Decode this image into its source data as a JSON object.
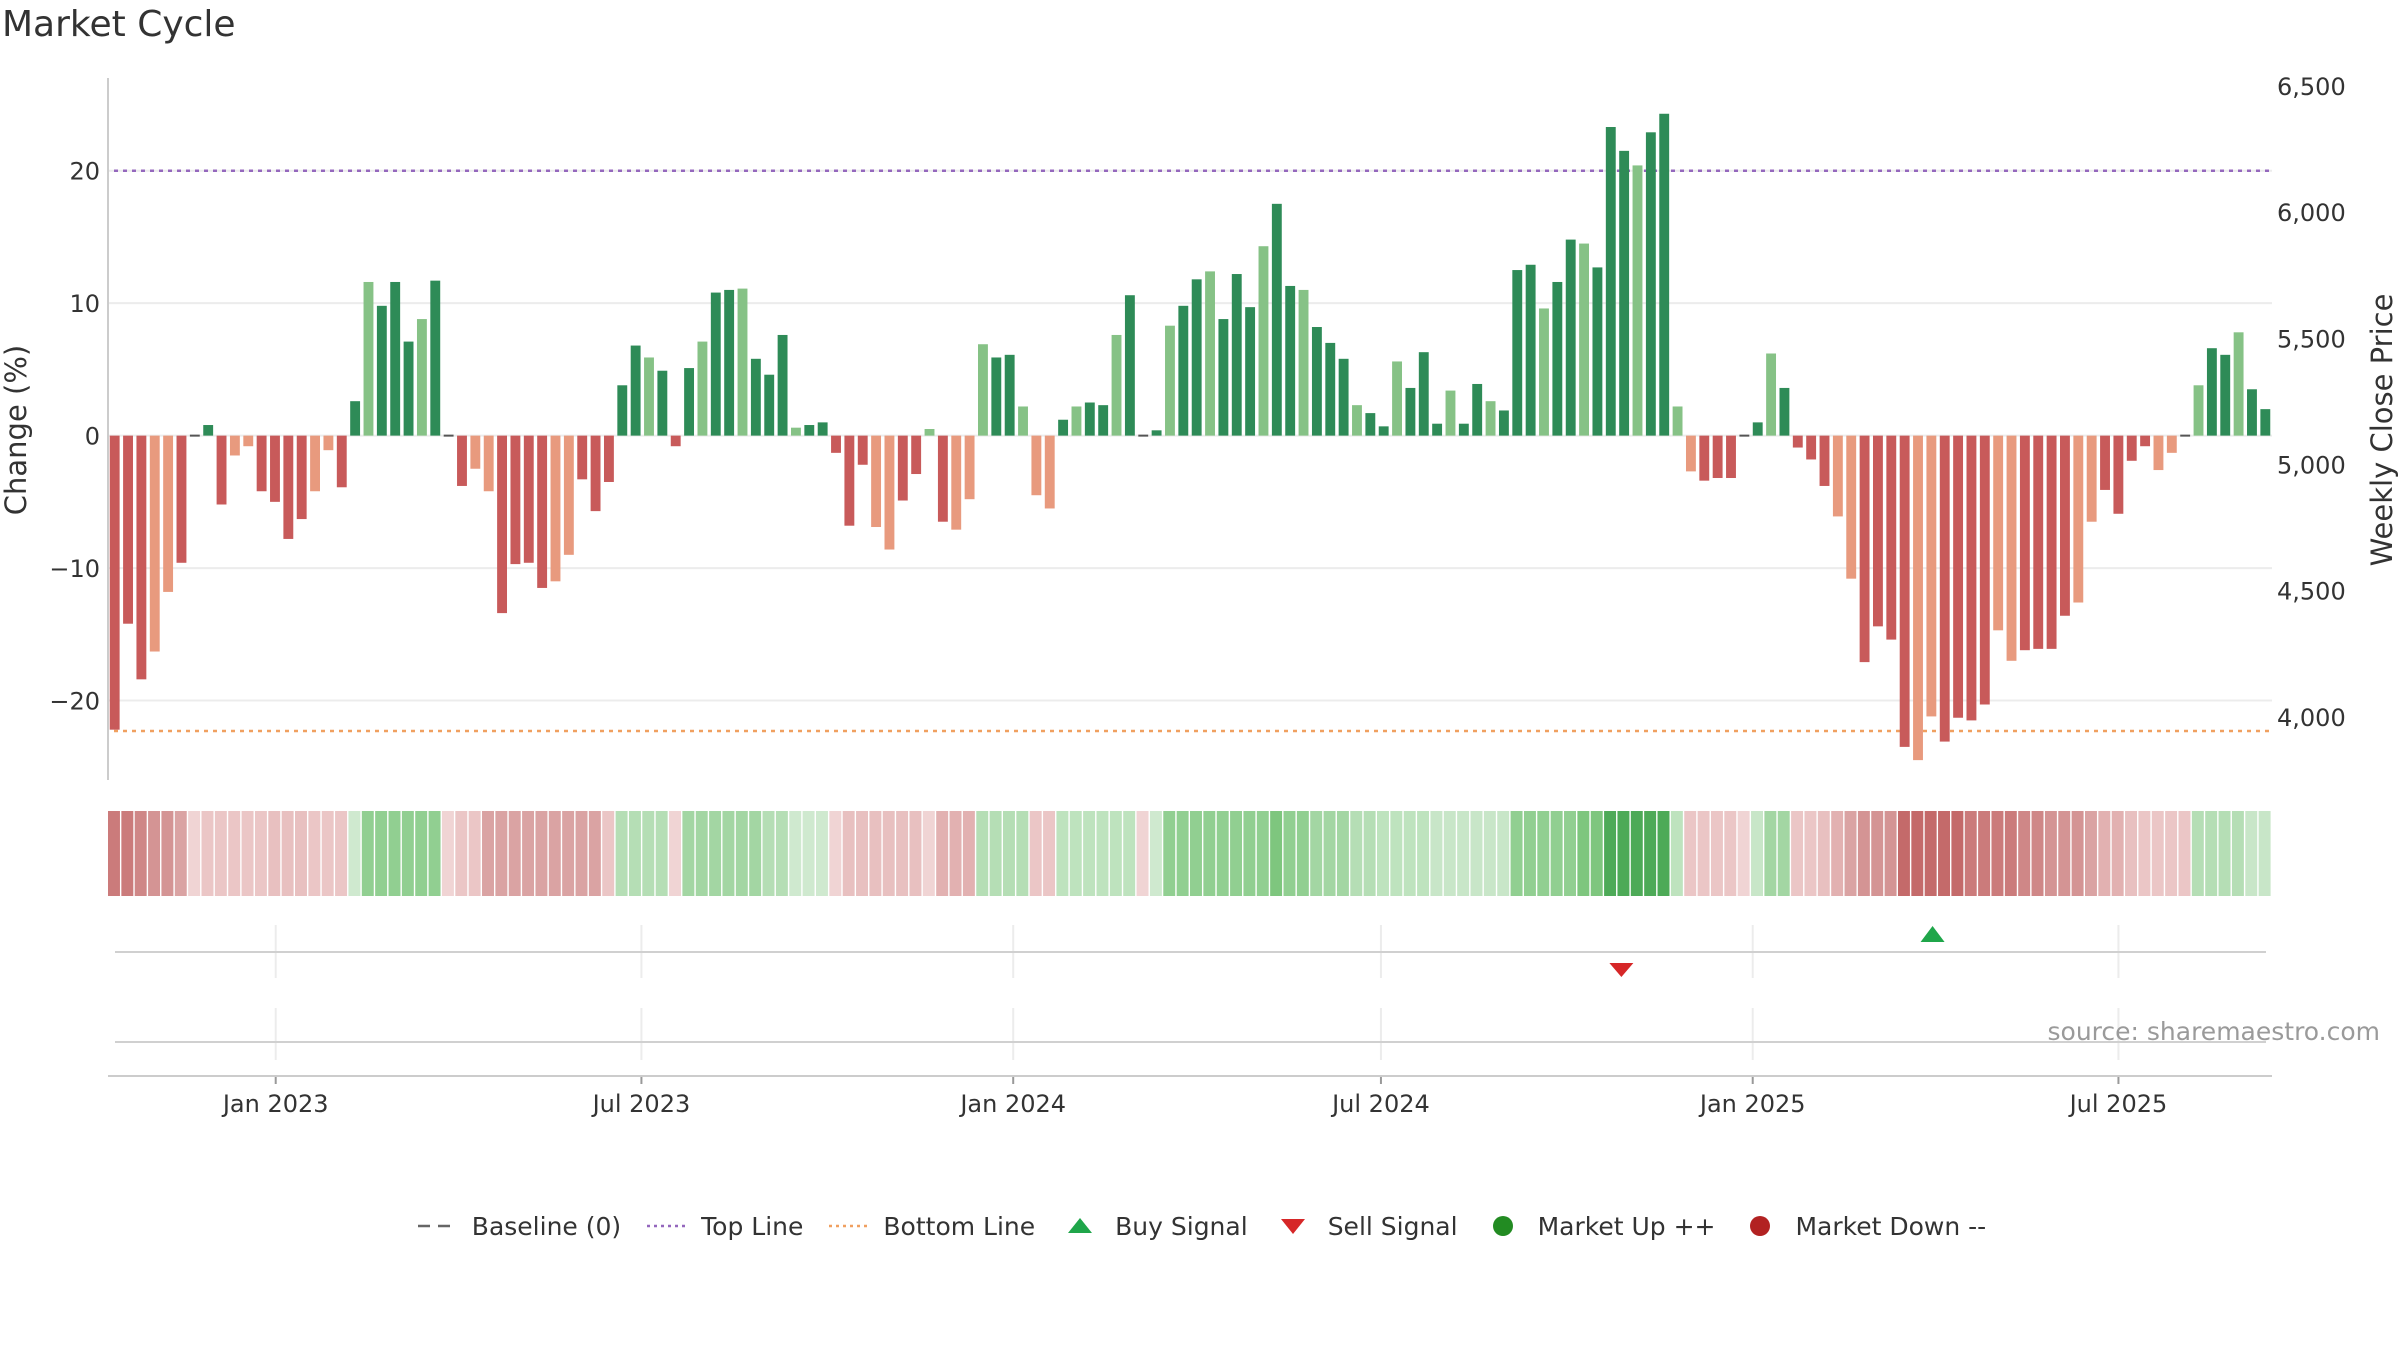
{
  "title": "Market Cycle",
  "source": "source: sharemaestro.com",
  "colors": {
    "pos_dark": "#2e8b57",
    "pos_light": "#86c286",
    "neg_dark": "#c85a5a",
    "neg_light": "#e89a7e",
    "top_line": "#9467bd",
    "bottom_line": "#f0a060",
    "buy": "#1fa64a",
    "sell": "#d62728",
    "up": "#228b22",
    "down": "#b22222",
    "baseline": "#555555"
  },
  "legend": [
    {
      "key": "baseline",
      "label": "Baseline (0)",
      "icon": "dashed-line-icon"
    },
    {
      "key": "top",
      "label": "Top Line",
      "icon": "dotted-purple-line-icon"
    },
    {
      "key": "bottom",
      "label": "Bottom Line",
      "icon": "dotted-orange-line-icon"
    },
    {
      "key": "buy",
      "label": "Buy Signal",
      "icon": "triangle-up-icon"
    },
    {
      "key": "sell",
      "label": "Sell Signal",
      "icon": "triangle-down-icon"
    },
    {
      "key": "up",
      "label": "Market Up ++",
      "icon": "green-dot-icon"
    },
    {
      "key": "down",
      "label": "Market Down --",
      "icon": "red-dot-icon"
    }
  ],
  "chart_data": {
    "type": "bar",
    "title": "Market Cycle",
    "ylabel": "Change (%)",
    "y2label": "Weekly Close Price",
    "ylim": [
      -26,
      27
    ],
    "y2lim": [
      3750,
      6500
    ],
    "yticks": [
      20,
      10,
      0,
      -10,
      -20
    ],
    "ytick_labels": [
      "20",
      "10",
      "0",
      "−10",
      "−20"
    ],
    "y2ticks": [
      6500,
      6000,
      5500,
      5000,
      4500,
      4000
    ],
    "y2tick_labels": [
      "6,500",
      "6,000",
      "5,500",
      "5,000",
      "4,500",
      "4,000"
    ],
    "top_line": 20,
    "bottom_line": -22.3,
    "x_start": "2022-10-10",
    "x_end": "2025-09-15",
    "xticks": [
      {
        "date": "2023-01-01",
        "label": "Jan 2023"
      },
      {
        "date": "2023-07-01",
        "label": "Jul 2023"
      },
      {
        "date": "2024-01-01",
        "label": "Jan 2024"
      },
      {
        "date": "2024-07-01",
        "label": "Jul 2024"
      },
      {
        "date": "2025-01-01",
        "label": "Jan 2025"
      },
      {
        "date": "2025-07-01",
        "label": "Jul 2025"
      }
    ],
    "weekly_change": [
      -22.2,
      -14.2,
      -18.4,
      -16.3,
      -11.8,
      -9.6,
      0,
      0.8,
      -5.2,
      -1.5,
      -0.8,
      -4.2,
      -5,
      -7.8,
      -6.3,
      -4.2,
      -1.1,
      -3.9,
      2.6,
      11.6,
      9.8,
      11.6,
      7.1,
      8.8,
      11.7,
      0,
      -3.8,
      -2.5,
      -4.2,
      -13.4,
      -9.7,
      -9.6,
      -11.5,
      -11,
      -9,
      -3.3,
      -5.7,
      -3.5,
      3.8,
      6.8,
      5.9,
      4.9,
      -0.8,
      5.1,
      7.1,
      10.8,
      11,
      11.1,
      5.8,
      4.6,
      7.6,
      0.6,
      0.8,
      1,
      -1.3,
      -6.8,
      -2.2,
      -6.9,
      -8.6,
      -4.9,
      -2.9,
      0.5,
      -6.5,
      -7.1,
      -4.8,
      6.9,
      5.9,
      6.1,
      2.2,
      -4.5,
      -5.5,
      1.2,
      2.2,
      2.5,
      2.3,
      7.6,
      10.6,
      0,
      0.4,
      8.3,
      9.8,
      11.8,
      12.4,
      8.8,
      12.2,
      9.7,
      14.3,
      17.5,
      11.3,
      11,
      8.2,
      7,
      5.8,
      2.3,
      1.7,
      0.7,
      5.6,
      3.6,
      6.3,
      0.9,
      3.4,
      0.9,
      3.9,
      2.6,
      1.9,
      12.5,
      12.9,
      9.6,
      11.6,
      14.8,
      14.5,
      12.7,
      23.3,
      21.5,
      20.4,
      22.9,
      24.3,
      2.2,
      -2.7,
      -3.4,
      -3.2,
      -3.2,
      0,
      1,
      6.2,
      3.6,
      -0.9,
      -1.8,
      -3.8,
      -6.1,
      -10.8,
      -17.1,
      -14.4,
      -15.4,
      -23.5,
      -24.5,
      -21.2,
      -23.1,
      -21.3,
      -21.5,
      -20.3,
      -14.7,
      -17,
      -16.2,
      -16.1,
      -16.1,
      -13.6,
      -12.6,
      -6.5,
      -4.1,
      -5.9,
      -1.9,
      -0.8,
      -2.6,
      -1.3,
      0,
      3.8,
      6.6,
      6.1,
      7.8,
      3.5,
      2
    ],
    "regime_colors": [
      "#cb7b7b",
      "#cb7b7b",
      "#cf8787",
      "#d49494",
      "#d49494",
      "#daa3a3",
      "#f0d4d4",
      "#ebc6c6",
      "#ebc6c6",
      "#ebc6c6",
      "#ebc6c6",
      "#ebc6c6",
      "#e8c0c0",
      "#e8c0c0",
      "#e8c0c0",
      "#ebc6c6",
      "#ebc6c6",
      "#ebc6c6",
      "#cfe9cf",
      "#91cf91",
      "#91cf91",
      "#91cf91",
      "#91cf91",
      "#91cf91",
      "#91cf91",
      "#f0d4d4",
      "#ebc6c6",
      "#ebc6c6",
      "#daa3a3",
      "#daa3a3",
      "#daa3a3",
      "#daa3a3",
      "#daa3a3",
      "#daa3a3",
      "#daa3a3",
      "#daa3a3",
      "#daa3a3",
      "#ebc6c6",
      "#b5deb5",
      "#b5deb5",
      "#b5deb5",
      "#b5deb5",
      "#f0d4d4",
      "#a3d6a3",
      "#a3d6a3",
      "#a3d6a3",
      "#a3d6a3",
      "#a3d6a3",
      "#a3d6a3",
      "#b5deb5",
      "#b5deb5",
      "#cfe9cf",
      "#cfe9cf",
      "#cfe9cf",
      "#f0d4d4",
      "#e8c0c0",
      "#e8c0c0",
      "#e8c0c0",
      "#e8c0c0",
      "#e8c0c0",
      "#e8c0c0",
      "#f0d4d4",
      "#e2b1b1",
      "#e2b1b1",
      "#e2b1b1",
      "#b5deb5",
      "#b5deb5",
      "#b5deb5",
      "#b5deb5",
      "#ebc6c6",
      "#ebc6c6",
      "#bee3be",
      "#bee3be",
      "#bee3be",
      "#bee3be",
      "#bee3be",
      "#bee3be",
      "#f0d4d4",
      "#cfe9cf",
      "#91cf91",
      "#91cf91",
      "#91cf91",
      "#91cf91",
      "#91cf91",
      "#91cf91",
      "#91cf91",
      "#91cf91",
      "#7ec67e",
      "#91cf91",
      "#91cf91",
      "#a3d6a3",
      "#a3d6a3",
      "#a3d6a3",
      "#b5deb5",
      "#b5deb5",
      "#bee3be",
      "#bee3be",
      "#bee3be",
      "#bee3be",
      "#c8e6c8",
      "#c8e6c8",
      "#c8e6c8",
      "#c8e6c8",
      "#c8e6c8",
      "#c8e6c8",
      "#91cf91",
      "#91cf91",
      "#91cf91",
      "#91cf91",
      "#91cf91",
      "#7ec67e",
      "#7ec67e",
      "#4daa57",
      "#4daa57",
      "#4daa57",
      "#4daa57",
      "#4daa57",
      "#bee3be",
      "#ebc6c6",
      "#ebc6c6",
      "#ebc6c6",
      "#ebc6c6",
      "#f0d4d4",
      "#c8e6c8",
      "#a3d6a3",
      "#a3d6a3",
      "#ebc6c6",
      "#ebc6c6",
      "#e8c0c0",
      "#e2b1b1",
      "#daa3a3",
      "#d49494",
      "#d49494",
      "#d49494",
      "#c46a6a",
      "#c46a6a",
      "#c46a6a",
      "#c46a6a",
      "#c46a6a",
      "#cb7b7b",
      "#cb7b7b",
      "#cb7b7b",
      "#cb7b7b",
      "#cf8787",
      "#cf8787",
      "#d49494",
      "#d49494",
      "#d49494",
      "#daa3a3",
      "#e2b1b1",
      "#e2b1b1",
      "#e8c0c0",
      "#ebc6c6",
      "#ebc6c6",
      "#ebc6c6",
      "#ebc6c6",
      "#b5deb5",
      "#b5deb5",
      "#b5deb5",
      "#b5deb5",
      "#c8e6c8",
      "#c8e6c8"
    ],
    "buy_signals": [
      {
        "date": "2025-03-31"
      }
    ],
    "sell_signals": [
      {
        "date": "2024-10-28"
      }
    ]
  }
}
